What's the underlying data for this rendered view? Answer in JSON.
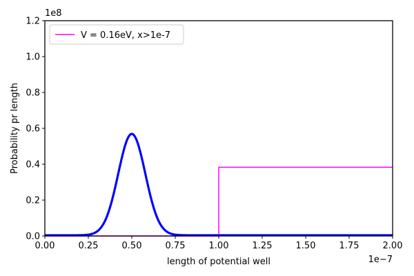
{
  "chart_data": {
    "type": "line",
    "title": "",
    "xlabel": "length of potential well",
    "ylabel": "Probability pr length",
    "x_offset_label": "1e−7",
    "y_offset_label": "1e8",
    "xlim": [
      0.0,
      2.0
    ],
    "ylim": [
      0.0,
      1.2
    ],
    "x_ticks": [
      "0.00",
      "0.25",
      "0.50",
      "0.75",
      "1.00",
      "1.25",
      "1.50",
      "1.75",
      "2.00"
    ],
    "y_ticks": [
      "0.0",
      "0.2",
      "0.4",
      "0.6",
      "0.8",
      "1.0",
      "1.2"
    ],
    "grid": false,
    "legend_position": "top-left",
    "series": [
      {
        "name": "",
        "color": "#0000ff",
        "style": "thick",
        "peak_x": 0.5,
        "peak_y": 0.565,
        "sigma": 0.078
      },
      {
        "name": "V = 0.16eV, x>1e-7",
        "color": "#ff00ff",
        "style": "thin",
        "x": [
          0.0,
          1.0,
          1.0,
          2.0
        ],
        "y": [
          0.0,
          0.0,
          0.383,
          0.383
        ]
      }
    ]
  }
}
